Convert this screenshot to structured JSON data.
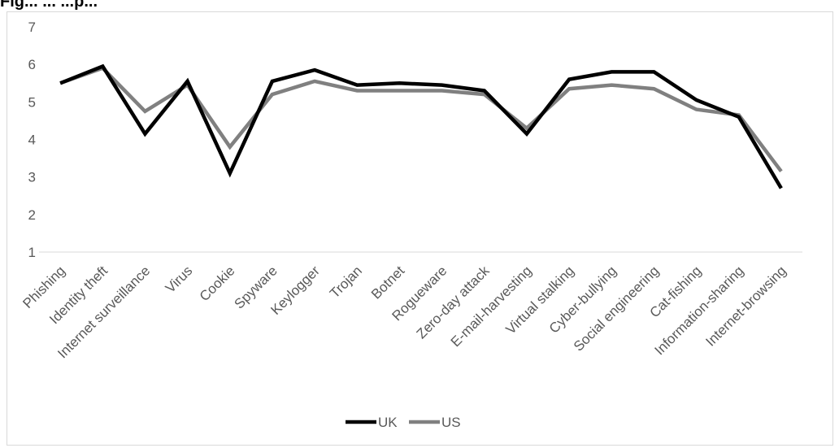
{
  "title_fragment": "Fig... ... ...p...",
  "chart_data": {
    "type": "line",
    "categories": [
      "Phishing",
      "Identity theft",
      "Internet surveillance",
      "Virus",
      "Cookie",
      "Spyware",
      "Keylogger",
      "Trojan",
      "Botnet",
      "Rogueware",
      "Zero-day attack",
      "E-mail-harvesting",
      "Virtual stalking",
      "Cyber-bullying",
      "Social engineering",
      "Cat-fishing",
      "Information-sharing",
      "Internet-browsing"
    ],
    "series": [
      {
        "name": "UK",
        "color": "#000000",
        "values": [
          5.5,
          5.95,
          4.15,
          5.55,
          3.1,
          5.55,
          5.85,
          5.45,
          5.5,
          5.45,
          5.3,
          4.15,
          5.6,
          5.8,
          5.8,
          5.05,
          4.6,
          2.7
        ]
      },
      {
        "name": "US",
        "color": "#808080",
        "values": [
          5.5,
          5.9,
          4.75,
          5.45,
          3.8,
          5.2,
          5.55,
          5.3,
          5.3,
          5.3,
          5.2,
          4.3,
          5.35,
          5.45,
          5.35,
          4.8,
          4.65,
          3.15
        ]
      }
    ],
    "ylim": [
      1,
      7
    ],
    "yticks": [
      1,
      2,
      3,
      4,
      5,
      6,
      7
    ],
    "grid": false,
    "legend_position": "bottom"
  }
}
